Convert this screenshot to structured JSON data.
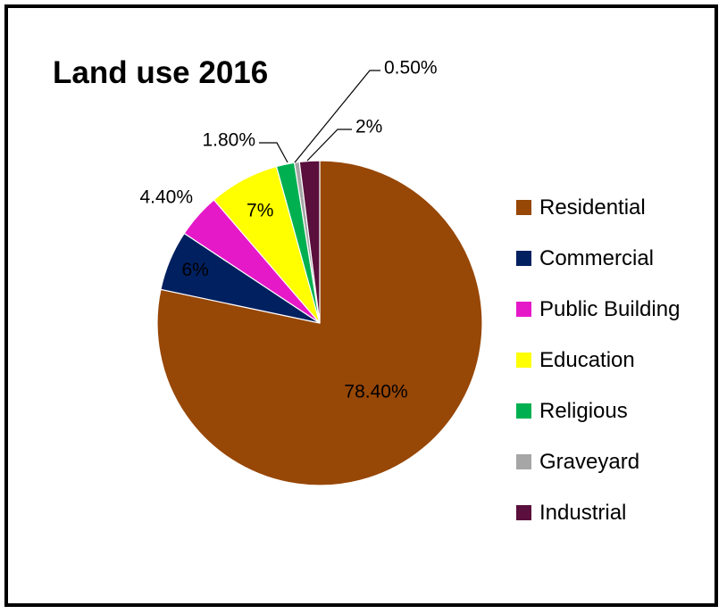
{
  "chart_data": {
    "type": "pie",
    "title": "Land use 2016",
    "slices": [
      {
        "name": "Residential",
        "value": 78.4,
        "label": "78.40%",
        "color": "#974706"
      },
      {
        "name": "Commercial",
        "value": 6,
        "label": "6%",
        "color": "#002060"
      },
      {
        "name": "Public Building",
        "value": 4.4,
        "label": "4.40%",
        "color": "#E619C8"
      },
      {
        "name": "Education",
        "value": 7,
        "label": "7%",
        "color": "#FFFF00"
      },
      {
        "name": "Religious",
        "value": 1.8,
        "label": "1.80%",
        "color": "#00B050"
      },
      {
        "name": "Graveyard",
        "value": 0.5,
        "label": "0.50%",
        "color": "#A6A6A6"
      },
      {
        "name": "Industrial",
        "value": 2,
        "label": "2%",
        "color": "#5A0F3C"
      }
    ],
    "legend": {
      "position": "right"
    }
  }
}
